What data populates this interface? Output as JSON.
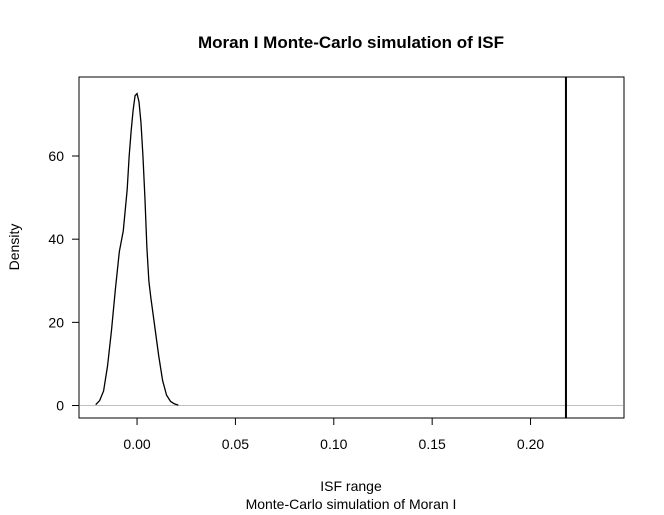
{
  "chart_data": {
    "type": "line",
    "title": "Moran I Monte-Carlo simulation of ISF",
    "xlabel": "ISF range",
    "sublabel": "Monte-Carlo simulation of Moran I",
    "ylabel": "Density",
    "xlim": [
      -0.0295,
      0.2475
    ],
    "ylim": [
      -3,
      79
    ],
    "xticks": [
      0.0,
      0.05,
      0.1,
      0.15,
      0.2
    ],
    "xtick_labels": [
      "0.00",
      "0.05",
      "0.10",
      "0.15",
      "0.20"
    ],
    "yticks": [
      0,
      20,
      40,
      60
    ],
    "ytick_labels": [
      "0",
      "20",
      "40",
      "60"
    ],
    "grid": false,
    "baseline": {
      "y": 0,
      "color": "#bebebe"
    },
    "observed_line": {
      "x": 0.218,
      "color": "#000000"
    },
    "series": [
      {
        "color": "#000000",
        "x": [
          -0.021,
          -0.019,
          -0.017,
          -0.015,
          -0.013,
          -0.011,
          -0.009,
          -0.007,
          -0.005,
          -0.004,
          -0.003,
          -0.002,
          -0.001,
          0.0,
          0.001,
          0.002,
          0.003,
          0.004,
          0.005,
          0.006,
          0.007,
          0.009,
          0.011,
          0.013,
          0.015,
          0.017,
          0.019,
          0.021
        ],
        "y": [
          0.2,
          1.2,
          3.5,
          9.5,
          18,
          28,
          37,
          42,
          52,
          60,
          66,
          71,
          74.5,
          75,
          73,
          68,
          60,
          50,
          38,
          30,
          26,
          19,
          12,
          6,
          2.5,
          1.0,
          0.4,
          0.1
        ]
      }
    ]
  }
}
